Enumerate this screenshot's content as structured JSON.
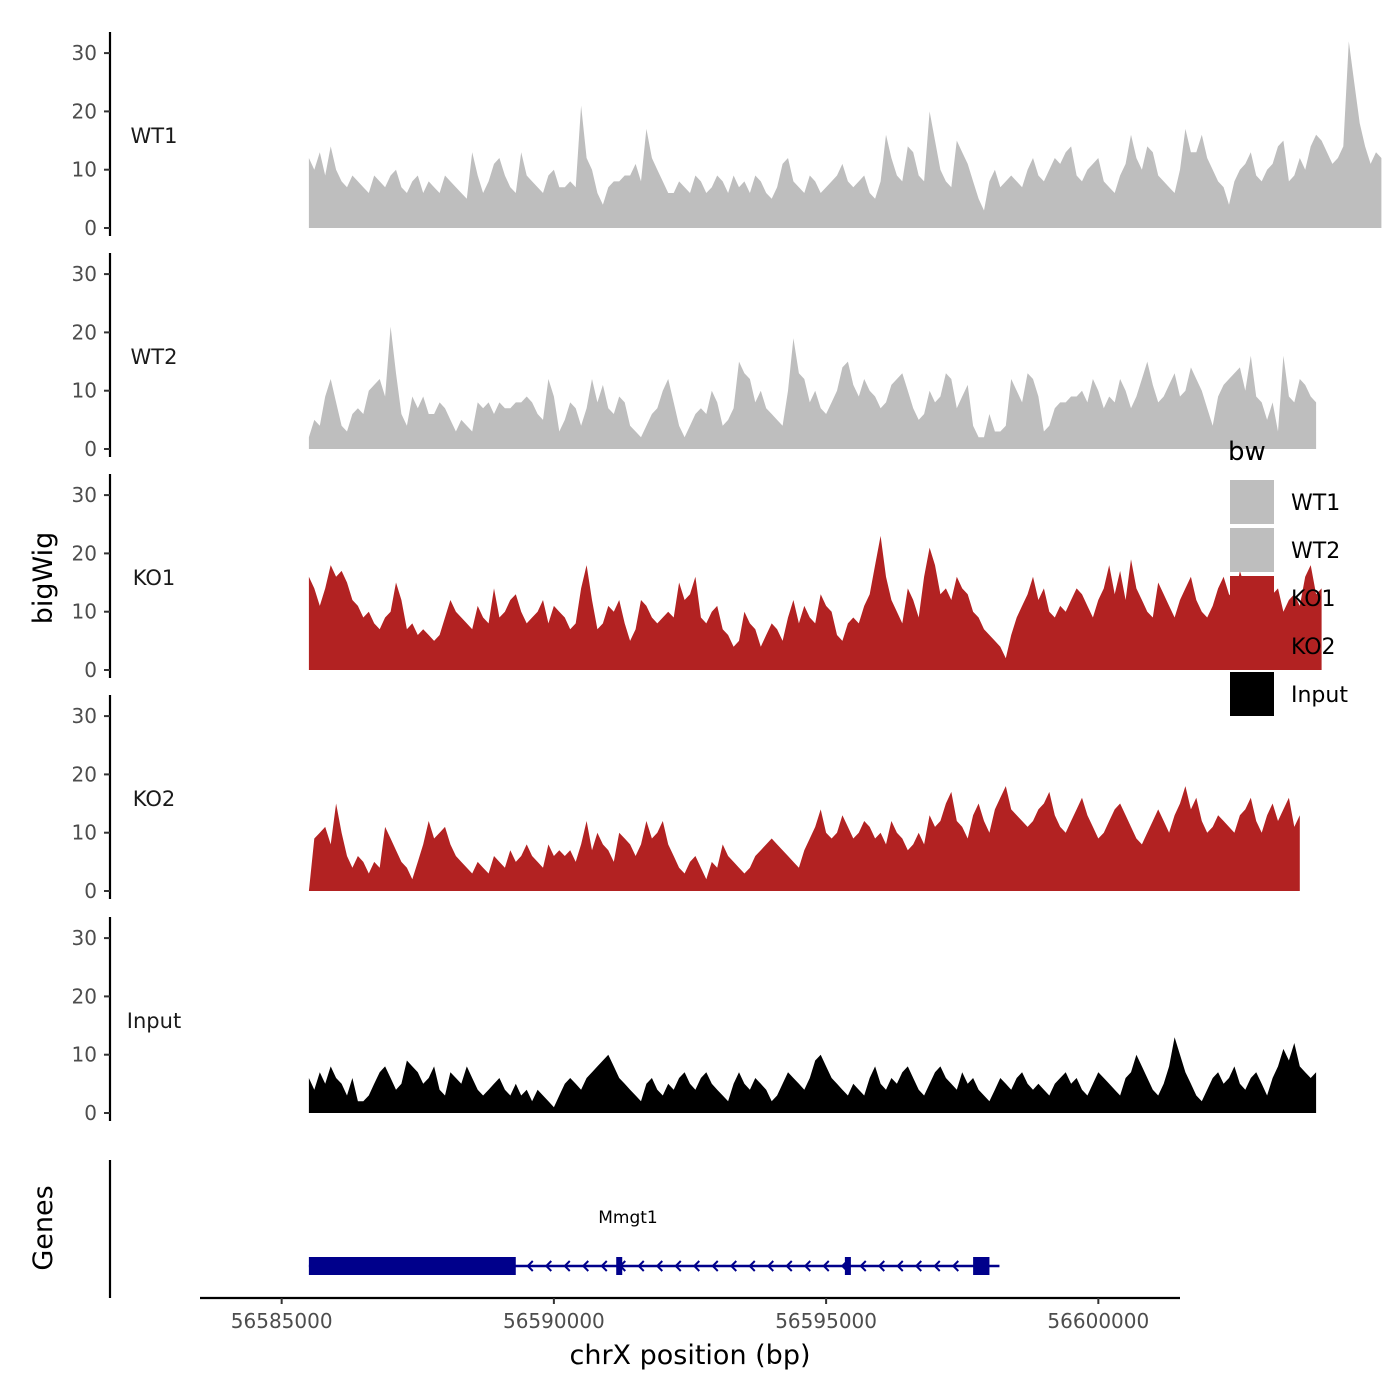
{
  "chart_data": {
    "type": "area",
    "ylabel": "bigWig",
    "xlabel": "chrX position (bp)",
    "genes_label": "Genes",
    "xlim": [
      56583500,
      56601500
    ],
    "data_range": [
      56585500,
      56600000
    ],
    "ylim": [
      0,
      33
    ],
    "yticks": [
      0,
      10,
      20,
      30
    ],
    "xticks": [
      56585000,
      56590000,
      56595000,
      56600000
    ],
    "xtick_labels": [
      "56585000",
      "56590000",
      "56595000",
      "56600000"
    ],
    "legend": {
      "title": "bw",
      "position": "right",
      "entries": [
        {
          "label": "WT1",
          "color": "#bebebe"
        },
        {
          "label": "WT2",
          "color": "#bebebe"
        },
        {
          "label": "KO1",
          "color": "#b22222"
        },
        {
          "label": "KO2",
          "color": "#b22222"
        },
        {
          "label": "Input",
          "color": "#000000"
        }
      ]
    },
    "series": [
      {
        "name": "WT1",
        "color": "#bebebe",
        "x_start": 56585500,
        "x_step": 100,
        "values": [
          12,
          10,
          13,
          9,
          14,
          10,
          8,
          7,
          9,
          8,
          7,
          6,
          9,
          8,
          7,
          9,
          10,
          7,
          6,
          8,
          9,
          6,
          8,
          7,
          6,
          9,
          8,
          7,
          6,
          5,
          13,
          9,
          6,
          8,
          11,
          12,
          9,
          7,
          6,
          13,
          9,
          8,
          7,
          6,
          9,
          10,
          7,
          7,
          8,
          7,
          21,
          12,
          10,
          6,
          4,
          7,
          8,
          8,
          9,
          9,
          11,
          8,
          17,
          12,
          10,
          8,
          6,
          6,
          8,
          7,
          6,
          9,
          8,
          6,
          7,
          9,
          8,
          6,
          9,
          7,
          8,
          6,
          9,
          8,
          6,
          5,
          7,
          11,
          12,
          8,
          7,
          6,
          9,
          8,
          6,
          7,
          8,
          9,
          11,
          8,
          7,
          8,
          9,
          6,
          5,
          8,
          16,
          12,
          9,
          8,
          14,
          13,
          9,
          8,
          20,
          15,
          10,
          8,
          7,
          15,
          13,
          11,
          8,
          5,
          3,
          8,
          10,
          7,
          8,
          9,
          8,
          7,
          10,
          12,
          9,
          8,
          10,
          12,
          11,
          13,
          14,
          9,
          8,
          10,
          11,
          12,
          8,
          7,
          6,
          9,
          11,
          16,
          12,
          10,
          14,
          13,
          9,
          8,
          7,
          6,
          10,
          17,
          13,
          13,
          16,
          12,
          10,
          8,
          7,
          4,
          8,
          10,
          11,
          13,
          9,
          8,
          10,
          11,
          14,
          15,
          8,
          9,
          12,
          10,
          14,
          16,
          15,
          13,
          11,
          12,
          14,
          32,
          25,
          18,
          14,
          11,
          13,
          12
        ]
      },
      {
        "name": "WT2",
        "color": "#bebebe",
        "x_start": 56585500,
        "x_step": 100,
        "values": [
          2,
          5,
          4,
          9,
          12,
          8,
          4,
          3,
          6,
          7,
          6,
          10,
          11,
          12,
          9,
          21,
          13,
          6,
          4,
          9,
          7,
          9,
          6,
          6,
          8,
          7,
          5,
          3,
          5,
          4,
          3,
          8,
          7,
          8,
          6,
          8,
          7,
          7,
          8,
          8,
          9,
          8,
          6,
          5,
          12,
          9,
          3,
          5,
          8,
          7,
          4,
          7,
          12,
          8,
          11,
          7,
          6,
          9,
          8,
          4,
          3,
          2,
          4,
          6,
          7,
          10,
          12,
          8,
          4,
          2,
          4,
          6,
          7,
          6,
          10,
          8,
          4,
          5,
          7,
          15,
          13,
          12,
          8,
          10,
          7,
          6,
          5,
          4,
          10,
          19,
          13,
          12,
          8,
          10,
          7,
          6,
          8,
          10,
          14,
          15,
          11,
          9,
          12,
          10,
          9,
          7,
          8,
          11,
          12,
          13,
          10,
          7,
          5,
          6,
          10,
          8,
          9,
          13,
          12,
          7,
          9,
          11,
          4,
          2,
          2,
          6,
          3,
          3,
          4,
          12,
          10,
          8,
          13,
          12,
          9,
          3,
          4,
          7,
          8,
          8,
          9,
          9,
          10,
          8,
          12,
          10,
          7,
          9,
          8,
          12,
          10,
          7,
          9,
          12,
          15,
          11,
          8,
          9,
          11,
          13,
          9,
          10,
          14,
          12,
          10,
          7,
          4,
          9,
          11,
          12,
          13,
          14,
          10,
          16,
          9,
          8,
          5,
          8,
          3,
          16,
          9,
          8,
          12,
          11,
          9,
          8
        ]
      },
      {
        "name": "KO1",
        "color": "#b22222",
        "x_start": 56585500,
        "x_step": 100,
        "values": [
          16,
          14,
          11,
          14,
          18,
          16,
          17,
          15,
          12,
          11,
          9,
          10,
          8,
          7,
          9,
          10,
          15,
          12,
          7,
          8,
          6,
          7,
          6,
          5,
          6,
          9,
          12,
          10,
          9,
          8,
          7,
          11,
          9,
          8,
          14,
          9,
          10,
          12,
          13,
          10,
          8,
          9,
          10,
          12,
          8,
          11,
          10,
          9,
          7,
          8,
          14,
          18,
          12,
          7,
          8,
          11,
          10,
          12,
          8,
          5,
          7,
          12,
          11,
          9,
          8,
          9,
          10,
          9,
          15,
          12,
          13,
          16,
          9,
          8,
          10,
          11,
          7,
          6,
          4,
          5,
          10,
          8,
          7,
          4,
          6,
          8,
          7,
          5,
          9,
          12,
          8,
          11,
          9,
          8,
          13,
          11,
          10,
          6,
          5,
          8,
          9,
          8,
          11,
          13,
          18,
          23,
          16,
          12,
          10,
          8,
          14,
          12,
          9,
          16,
          21,
          18,
          13,
          14,
          12,
          16,
          14,
          13,
          10,
          9,
          7,
          6,
          5,
          4,
          2,
          6,
          9,
          11,
          13,
          16,
          12,
          14,
          10,
          9,
          11,
          10,
          12,
          14,
          13,
          11,
          9,
          12,
          14,
          18,
          13,
          17,
          12,
          19,
          14,
          12,
          10,
          9,
          15,
          13,
          11,
          9,
          12,
          14,
          16,
          12,
          10,
          9,
          11,
          14,
          16,
          13,
          12,
          17,
          14,
          16,
          12,
          9,
          11,
          13,
          14,
          10,
          12,
          13,
          11,
          16,
          18,
          13,
          14
        ]
      },
      {
        "name": "KO2",
        "color": "#b22222",
        "x_start": 56585500,
        "x_step": 100,
        "values": [
          0,
          9,
          10,
          11,
          8,
          15,
          10,
          6,
          4,
          6,
          5,
          3,
          5,
          4,
          11,
          9,
          7,
          5,
          4,
          2,
          5,
          8,
          12,
          9,
          10,
          11,
          8,
          6,
          5,
          4,
          3,
          5,
          4,
          3,
          6,
          5,
          4,
          7,
          5,
          6,
          8,
          6,
          5,
          4,
          8,
          6,
          7,
          6,
          7,
          5,
          8,
          12,
          7,
          10,
          8,
          7,
          5,
          10,
          9,
          8,
          6,
          8,
          12,
          9,
          10,
          12,
          8,
          6,
          4,
          3,
          5,
          6,
          4,
          2,
          5,
          4,
          8,
          6,
          5,
          4,
          3,
          4,
          6,
          7,
          8,
          9,
          8,
          7,
          6,
          5,
          4,
          7,
          9,
          11,
          14,
          10,
          9,
          10,
          13,
          11,
          9,
          10,
          12,
          11,
          9,
          10,
          8,
          12,
          10,
          9,
          7,
          8,
          10,
          8,
          13,
          11,
          12,
          15,
          17,
          12,
          11,
          9,
          13,
          15,
          12,
          10,
          14,
          16,
          18,
          14,
          13,
          12,
          11,
          12,
          14,
          15,
          17,
          13,
          11,
          10,
          12,
          14,
          16,
          13,
          11,
          9,
          10,
          12,
          14,
          15,
          13,
          11,
          9,
          8,
          10,
          12,
          14,
          12,
          10,
          13,
          15,
          18,
          14,
          16,
          12,
          10,
          11,
          13,
          12,
          11,
          10,
          13,
          14,
          16,
          12,
          10,
          13,
          15,
          12,
          14,
          16,
          11,
          13
        ]
      },
      {
        "name": "Input",
        "color": "#000000",
        "x_start": 56585500,
        "x_step": 100,
        "values": [
          6,
          4,
          7,
          5,
          8,
          6,
          5,
          3,
          6,
          2,
          2,
          3,
          5,
          7,
          8,
          6,
          4,
          5,
          9,
          8,
          7,
          5,
          6,
          8,
          4,
          3,
          7,
          6,
          5,
          8,
          6,
          4,
          3,
          4,
          5,
          6,
          4,
          3,
          5,
          3,
          4,
          2,
          4,
          3,
          2,
          1,
          3,
          5,
          6,
          5,
          4,
          6,
          7,
          8,
          9,
          10,
          8,
          6,
          5,
          4,
          3,
          2,
          5,
          6,
          4,
          3,
          5,
          4,
          6,
          7,
          5,
          4,
          6,
          7,
          5,
          4,
          3,
          2,
          5,
          7,
          5,
          4,
          6,
          5,
          4,
          2,
          3,
          5,
          7,
          6,
          5,
          4,
          6,
          9,
          10,
          8,
          6,
          5,
          4,
          3,
          5,
          4,
          3,
          6,
          8,
          5,
          4,
          6,
          5,
          7,
          8,
          6,
          4,
          3,
          5,
          7,
          8,
          6,
          5,
          4,
          7,
          5,
          6,
          4,
          3,
          2,
          4,
          6,
          5,
          4,
          6,
          7,
          5,
          4,
          5,
          4,
          3,
          5,
          6,
          7,
          5,
          6,
          4,
          3,
          5,
          7,
          6,
          5,
          4,
          3,
          6,
          7,
          10,
          8,
          6,
          4,
          3,
          5,
          8,
          13,
          10,
          7,
          5,
          3,
          2,
          4,
          6,
          7,
          5,
          6,
          8,
          5,
          4,
          6,
          7,
          5,
          3,
          6,
          8,
          11,
          9,
          12,
          8,
          7,
          6,
          7
        ]
      }
    ],
    "gene": {
      "name": "Mmgt1",
      "strand": "-",
      "start": 56585500,
      "end": 56598000,
      "thick_exons": [
        [
          56585500,
          56589300
        ],
        [
          56597700,
          56598000
        ]
      ],
      "small_exons": [
        56591200,
        56595400
      ],
      "color": "#00008b"
    }
  }
}
